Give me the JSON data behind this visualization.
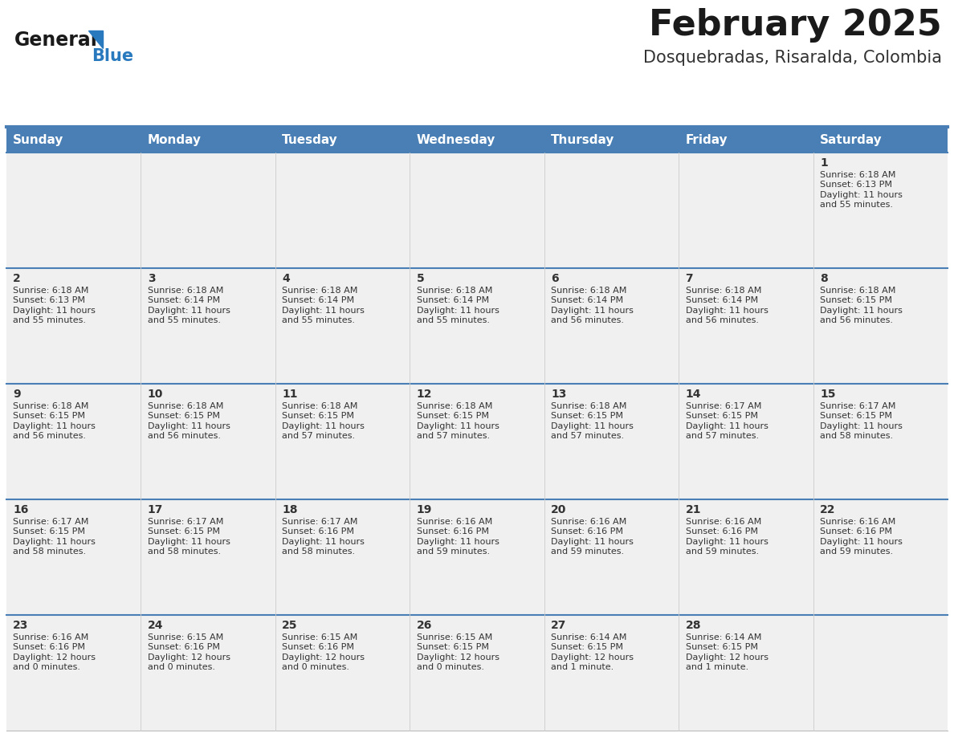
{
  "title": "February 2025",
  "subtitle": "Dosquebradas, Risaralda, Colombia",
  "days_of_week": [
    "Sunday",
    "Monday",
    "Tuesday",
    "Wednesday",
    "Thursday",
    "Friday",
    "Saturday"
  ],
  "header_bg": "#4A7FB5",
  "header_text_color": "#FFFFFF",
  "row_bg": "#F0F0F0",
  "separator_color": "#4A7FB5",
  "day_number_color": "#333333",
  "text_color": "#333333",
  "title_color": "#1a1a1a",
  "subtitle_color": "#333333",
  "logo_general_color": "#1a1a1a",
  "logo_blue_color": "#2979BE",
  "calendar_data": [
    {
      "day": 1,
      "col": 6,
      "row": 0,
      "sunrise": "6:18 AM",
      "sunset": "6:13 PM",
      "daylight": "11 hours and 55 minutes."
    },
    {
      "day": 2,
      "col": 0,
      "row": 1,
      "sunrise": "6:18 AM",
      "sunset": "6:13 PM",
      "daylight": "11 hours and 55 minutes."
    },
    {
      "day": 3,
      "col": 1,
      "row": 1,
      "sunrise": "6:18 AM",
      "sunset": "6:14 PM",
      "daylight": "11 hours and 55 minutes."
    },
    {
      "day": 4,
      "col": 2,
      "row": 1,
      "sunrise": "6:18 AM",
      "sunset": "6:14 PM",
      "daylight": "11 hours and 55 minutes."
    },
    {
      "day": 5,
      "col": 3,
      "row": 1,
      "sunrise": "6:18 AM",
      "sunset": "6:14 PM",
      "daylight": "11 hours and 55 minutes."
    },
    {
      "day": 6,
      "col": 4,
      "row": 1,
      "sunrise": "6:18 AM",
      "sunset": "6:14 PM",
      "daylight": "11 hours and 56 minutes."
    },
    {
      "day": 7,
      "col": 5,
      "row": 1,
      "sunrise": "6:18 AM",
      "sunset": "6:14 PM",
      "daylight": "11 hours and 56 minutes."
    },
    {
      "day": 8,
      "col": 6,
      "row": 1,
      "sunrise": "6:18 AM",
      "sunset": "6:15 PM",
      "daylight": "11 hours and 56 minutes."
    },
    {
      "day": 9,
      "col": 0,
      "row": 2,
      "sunrise": "6:18 AM",
      "sunset": "6:15 PM",
      "daylight": "11 hours and 56 minutes."
    },
    {
      "day": 10,
      "col": 1,
      "row": 2,
      "sunrise": "6:18 AM",
      "sunset": "6:15 PM",
      "daylight": "11 hours and 56 minutes."
    },
    {
      "day": 11,
      "col": 2,
      "row": 2,
      "sunrise": "6:18 AM",
      "sunset": "6:15 PM",
      "daylight": "11 hours and 57 minutes."
    },
    {
      "day": 12,
      "col": 3,
      "row": 2,
      "sunrise": "6:18 AM",
      "sunset": "6:15 PM",
      "daylight": "11 hours and 57 minutes."
    },
    {
      "day": 13,
      "col": 4,
      "row": 2,
      "sunrise": "6:18 AM",
      "sunset": "6:15 PM",
      "daylight": "11 hours and 57 minutes."
    },
    {
      "day": 14,
      "col": 5,
      "row": 2,
      "sunrise": "6:17 AM",
      "sunset": "6:15 PM",
      "daylight": "11 hours and 57 minutes."
    },
    {
      "day": 15,
      "col": 6,
      "row": 2,
      "sunrise": "6:17 AM",
      "sunset": "6:15 PM",
      "daylight": "11 hours and 58 minutes."
    },
    {
      "day": 16,
      "col": 0,
      "row": 3,
      "sunrise": "6:17 AM",
      "sunset": "6:15 PM",
      "daylight": "11 hours and 58 minutes."
    },
    {
      "day": 17,
      "col": 1,
      "row": 3,
      "sunrise": "6:17 AM",
      "sunset": "6:15 PM",
      "daylight": "11 hours and 58 minutes."
    },
    {
      "day": 18,
      "col": 2,
      "row": 3,
      "sunrise": "6:17 AM",
      "sunset": "6:16 PM",
      "daylight": "11 hours and 58 minutes."
    },
    {
      "day": 19,
      "col": 3,
      "row": 3,
      "sunrise": "6:16 AM",
      "sunset": "6:16 PM",
      "daylight": "11 hours and 59 minutes."
    },
    {
      "day": 20,
      "col": 4,
      "row": 3,
      "sunrise": "6:16 AM",
      "sunset": "6:16 PM",
      "daylight": "11 hours and 59 minutes."
    },
    {
      "day": 21,
      "col": 5,
      "row": 3,
      "sunrise": "6:16 AM",
      "sunset": "6:16 PM",
      "daylight": "11 hours and 59 minutes."
    },
    {
      "day": 22,
      "col": 6,
      "row": 3,
      "sunrise": "6:16 AM",
      "sunset": "6:16 PM",
      "daylight": "11 hours and 59 minutes."
    },
    {
      "day": 23,
      "col": 0,
      "row": 4,
      "sunrise": "6:16 AM",
      "sunset": "6:16 PM",
      "daylight": "12 hours and 0 minutes."
    },
    {
      "day": 24,
      "col": 1,
      "row": 4,
      "sunrise": "6:15 AM",
      "sunset": "6:16 PM",
      "daylight": "12 hours and 0 minutes."
    },
    {
      "day": 25,
      "col": 2,
      "row": 4,
      "sunrise": "6:15 AM",
      "sunset": "6:16 PM",
      "daylight": "12 hours and 0 minutes."
    },
    {
      "day": 26,
      "col": 3,
      "row": 4,
      "sunrise": "6:15 AM",
      "sunset": "6:15 PM",
      "daylight": "12 hours and 0 minutes."
    },
    {
      "day": 27,
      "col": 4,
      "row": 4,
      "sunrise": "6:14 AM",
      "sunset": "6:15 PM",
      "daylight": "12 hours and 1 minute."
    },
    {
      "day": 28,
      "col": 5,
      "row": 4,
      "sunrise": "6:14 AM",
      "sunset": "6:15 PM",
      "daylight": "12 hours and 1 minute."
    }
  ],
  "num_rows": 5,
  "num_cols": 7,
  "font_size_day": 10,
  "font_size_info": 8,
  "font_size_header": 11,
  "font_size_title": 32,
  "font_size_subtitle": 15
}
